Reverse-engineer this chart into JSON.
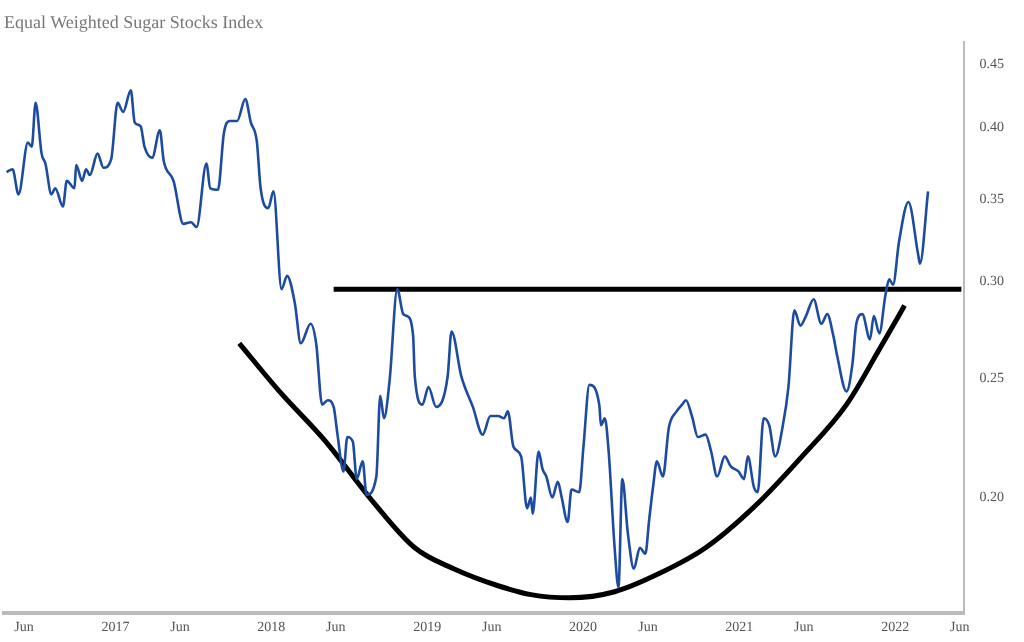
{
  "chart_data": {
    "type": "line",
    "title": "Equal Weighted Sugar Stocks Index",
    "log": "y",
    "grid": false,
    "legend": false,
    "marker": "none",
    "line_style": "solid",
    "xlim": [
      "2016-04-15",
      "2022-06-10"
    ],
    "xticks": [
      {
        "value": "2016-06-01",
        "label": "Jun"
      },
      "2017",
      {
        "value": "2017-06-01",
        "label": "Jun"
      },
      "2018",
      {
        "value": "2018-06-01",
        "label": "Jun"
      },
      "2019",
      {
        "value": "2019-06-01",
        "label": "Jun"
      },
      "2020",
      {
        "value": "2020-06-01",
        "label": "Jun"
      },
      "2021",
      {
        "value": "2021-06-01",
        "label": "Jun"
      },
      "2022",
      {
        "value": "2022-06-01",
        "label": "Jun"
      }
    ],
    "ylim": [
      0.161,
      0.47
    ],
    "yticks": [
      {
        "value": 0.2,
        "label": "0.20"
      },
      0.25,
      {
        "value": 0.3,
        "label": "0.30"
      },
      0.35,
      {
        "value": 0.4,
        "label": "0.40"
      },
      0.45
    ],
    "series": [
      {
        "color": "#1c4ba0",
        "x": [
          "2016-04-21",
          "2016-05-05",
          "2016-05-19",
          "2016-06-10",
          "2016-06-19",
          "2016-06-28",
          "2016-07-12",
          "2016-07-21",
          "2016-08-04",
          "2016-08-13",
          "2016-08-31",
          "2016-09-09",
          "2016-09-27",
          "2016-10-01",
          "2016-10-15",
          "2016-10-24",
          "2016-11-02",
          "2016-11-20",
          "2016-12-04",
          "2016-12-22",
          "2017-01-06",
          "2017-01-19",
          "2017-02-06",
          "2017-02-15",
          "2017-03-01",
          "2017-03-10",
          "2017-03-28",
          "2017-04-15",
          "2017-04-24",
          "2017-05-17",
          "2017-06-09",
          "2017-06-27",
          "2017-07-10",
          "2017-08-02",
          "2017-08-11",
          "2017-08-29",
          "2017-09-12",
          "2017-09-25",
          "2017-10-13",
          "2017-11-01",
          "2017-11-14",
          "2017-11-28",
          "2017-12-07",
          "2017-12-25",
          "2018-01-06",
          "2018-01-25",
          "2018-02-07",
          "2018-02-25",
          "2018-03-11",
          "2018-04-03",
          "2018-04-16",
          "2018-04-30",
          "2018-05-13",
          "2018-05-27",
          "2018-06-05",
          "2018-06-19",
          "2018-06-28",
          "2018-07-11",
          "2018-07-20",
          "2018-08-03",
          "2018-08-12",
          "2018-09-04",
          "2018-09-13",
          "2018-09-22",
          "2018-10-05",
          "2018-10-23",
          "2018-11-06",
          "2018-11-15",
          "2018-11-29",
          "2018-12-03",
          "2018-12-21",
          "2019-01-04",
          "2019-01-22",
          "2019-02-18",
          "2019-02-27",
          "2019-03-22",
          "2019-04-18",
          "2019-05-11",
          "2019-05-29",
          "2019-06-16",
          "2019-06-30",
          "2019-07-09",
          "2019-07-22",
          "2019-08-09",
          "2019-08-23",
          "2019-09-01",
          "2019-09-05",
          "2019-09-19",
          "2019-09-28",
          "2019-10-07",
          "2019-10-21",
          "2019-11-03",
          "2019-11-12",
          "2019-11-26",
          "2019-12-05",
          "2019-12-23",
          "2020-01-02",
          "2020-01-16",
          "2020-02-08",
          "2020-02-12",
          "2020-02-21",
          "2020-03-01",
          "2020-03-15",
          "2020-03-24",
          "2020-04-02",
          "2020-04-15",
          "2020-04-29",
          "2020-05-13",
          "2020-05-26",
          "2020-06-04",
          "2020-06-13",
          "2020-06-22",
          "2020-07-06",
          "2020-07-20",
          "2020-08-07",
          "2020-08-20",
          "2020-08-29",
          "2020-09-12",
          "2020-09-26",
          "2020-10-14",
          "2020-10-27",
          "2020-11-10",
          "2020-11-28",
          "2020-12-12",
          "2020-12-30",
          "2021-01-12",
          "2021-01-21",
          "2021-02-04",
          "2021-02-13",
          "2021-02-27",
          "2021-03-12",
          "2021-03-26",
          "2021-04-13",
          "2021-04-26",
          "2021-05-10",
          "2021-05-24",
          "2021-06-06",
          "2021-06-24",
          "2021-07-12",
          "2021-07-26",
          "2021-08-09",
          "2021-08-18",
          "2021-09-09",
          "2021-09-23",
          "2021-10-02",
          "2021-10-16",
          "2021-11-03",
          "2021-11-12",
          "2021-11-25",
          "2021-12-09",
          "2021-12-18",
          "2021-12-27",
          "2022-01-10",
          "2022-02-01",
          "2022-02-24",
          "2022-02-28",
          "2022-03-19"
        ],
        "values": [
          0.368,
          0.37,
          0.353,
          0.389,
          0.386,
          0.419,
          0.381,
          0.374,
          0.353,
          0.357,
          0.345,
          0.362,
          0.357,
          0.373,
          0.362,
          0.37,
          0.366,
          0.381,
          0.371,
          0.377,
          0.419,
          0.412,
          0.429,
          0.404,
          0.401,
          0.386,
          0.378,
          0.398,
          0.376,
          0.362,
          0.334,
          0.335,
          0.332,
          0.374,
          0.357,
          0.356,
          0.396,
          0.405,
          0.405,
          0.422,
          0.404,
          0.39,
          0.357,
          0.344,
          0.355,
          0.2955,
          0.303,
          0.288,
          0.267,
          0.277,
          0.267,
          0.238,
          0.24,
          0.237,
          0.225,
          0.21,
          0.224,
          0.222,
          0.207,
          0.214,
          0.201,
          0.208,
          0.242,
          0.232,
          0.249,
          0.2955,
          0.282,
          0.281,
          0.271,
          0.251,
          0.238,
          0.246,
          0.237,
          0.251,
          0.273,
          0.251,
          0.237,
          0.225,
          0.233,
          0.233,
          0.232,
          0.235,
          0.22,
          0.216,
          0.196,
          0.2,
          0.194,
          0.218,
          0.211,
          0.208,
          0.2,
          0.206,
          0.2,
          0.191,
          0.203,
          0.202,
          0.22,
          0.247,
          0.238,
          0.229,
          0.232,
          0.218,
          0.182,
          0.169,
          0.207,
          0.187,
          0.175,
          0.182,
          0.18,
          0.192,
          0.204,
          0.214,
          0.208,
          0.228,
          0.235,
          0.238,
          0.24,
          0.233,
          0.224,
          0.225,
          0.218,
          0.208,
          0.216,
          0.212,
          0.21,
          0.207,
          0.216,
          0.204,
          0.202,
          0.232,
          0.229,
          0.216,
          0.229,
          0.246,
          0.284,
          0.276,
          0.281,
          0.29,
          0.277,
          0.282,
          0.271,
          0.261,
          0.244,
          0.257,
          0.277,
          0.282,
          0.269,
          0.281,
          0.272,
          0.292,
          0.301,
          0.298,
          0.323,
          0.348,
          0.315,
          0.31,
          0.355
        ]
      },
      {
        "color": "#000000",
        "x": [
          "2018-05-27",
          "2022-06-05"
        ],
        "values": [
          0.2955,
          0.2955
        ]
      },
      {
        "color": "#000000",
        "x": [
          "2017-10-18",
          "2018-01-20",
          "2018-05-09",
          "2018-08-21",
          "2018-12-03",
          "2019-03-04",
          "2019-06-16",
          "2019-09-01",
          "2019-12-01",
          "2020-03-15",
          "2020-06-27",
          "2020-10-14",
          "2021-02-08",
          "2021-05-28",
          "2021-09-09",
          "2021-11-25",
          "2022-01-23"
        ],
        "values": [
          0.267,
          0.244,
          0.222,
          0.1996,
          0.182,
          0.175,
          0.1695,
          0.1667,
          0.1657,
          0.1676,
          0.1734,
          0.182,
          0.197,
          0.216,
          0.238,
          0.264,
          0.2866
        ]
      }
    ]
  }
}
